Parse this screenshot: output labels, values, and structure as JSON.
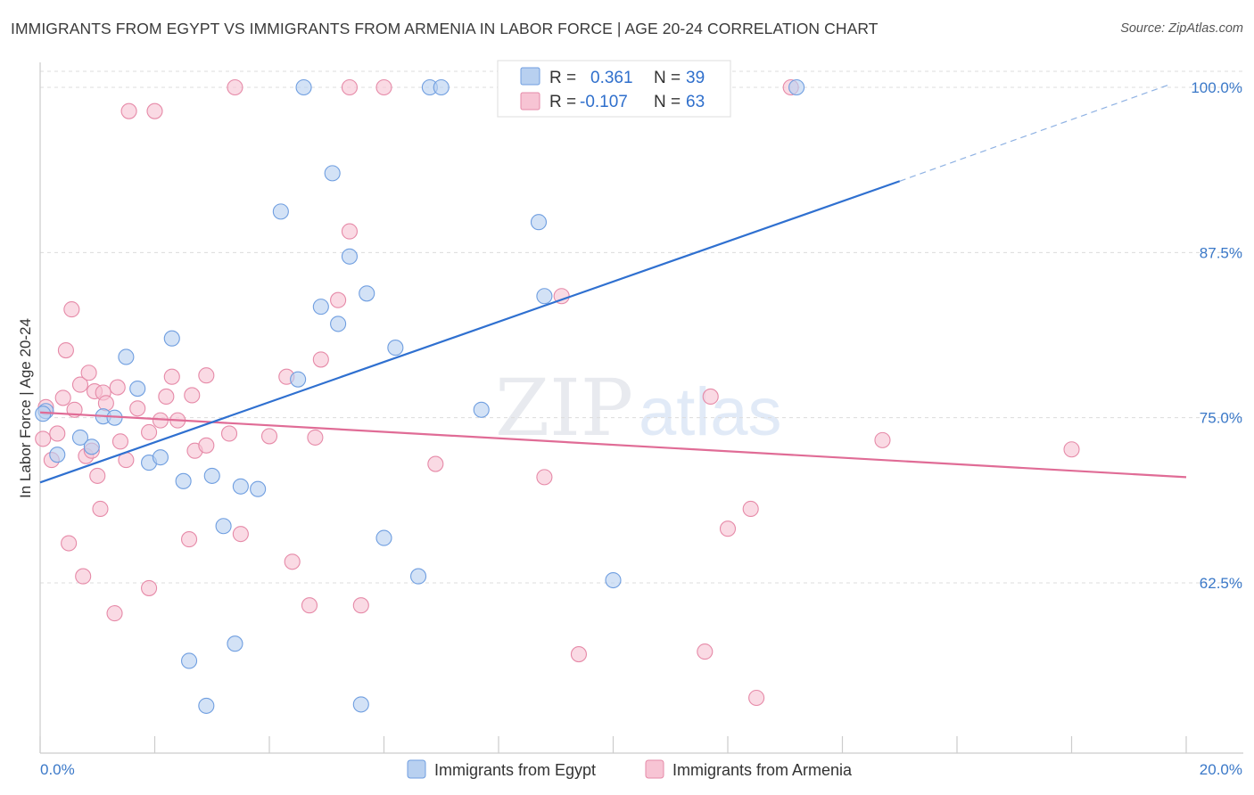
{
  "title": "IMMIGRANTS FROM EGYPT VS IMMIGRANTS FROM ARMENIA IN LABOR FORCE | AGE 20-24 CORRELATION CHART",
  "source": "Source: ZipAtlas.com",
  "watermark": {
    "zip": "ZIP",
    "atlas": "atlas"
  },
  "colors": {
    "blue_fill": "#b8d0f0",
    "blue_stroke": "#6f9ee0",
    "blue_line": "#2f70d0",
    "pink_fill": "#f7c4d4",
    "pink_stroke": "#e68aa8",
    "pink_line": "#e06c96",
    "tick_text": "#3a78c8",
    "grid": "#dcdcdc"
  },
  "legend": {
    "r_label": "R =",
    "n_label": "N =",
    "rows": [
      {
        "series": "egypt",
        "r": "0.361",
        "n": "39"
      },
      {
        "series": "armenia",
        "r": "-0.107",
        "n": "63"
      }
    ]
  },
  "chart_data": {
    "type": "scatter",
    "title": "IMMIGRANTS FROM EGYPT VS IMMIGRANTS FROM ARMENIA IN LABOR FORCE | AGE 20-24 CORRELATION CHART",
    "xlabel": "",
    "ylabel": "In Labor Force | Age 20-24",
    "xlim": [
      0,
      20
    ],
    "ylim": [
      50,
      101.2
    ],
    "x_tick_labels": [
      "0.0%",
      "20.0%"
    ],
    "y_ticks": [
      62.5,
      75.0,
      87.5,
      100.0
    ],
    "y_tick_labels": [
      "62.5%",
      "75.0%",
      "87.5%",
      "100.0%"
    ],
    "series": [
      {
        "name": "Immigrants from Egypt",
        "color": "blue",
        "trend": {
          "x0": 0,
          "y0": 70.1,
          "x1": 15.0,
          "y1": 92.9,
          "dash_to_x": 19.7,
          "dash_to_y": 100.2
        },
        "points": [
          [
            0.1,
            75.5
          ],
          [
            0.3,
            72.2
          ],
          [
            0.7,
            73.5
          ],
          [
            0.9,
            72.8
          ],
          [
            1.1,
            75.1
          ],
          [
            1.3,
            75.0
          ],
          [
            1.5,
            79.6
          ],
          [
            1.7,
            77.2
          ],
          [
            1.9,
            71.6
          ],
          [
            2.1,
            72.0
          ],
          [
            2.3,
            81.0
          ],
          [
            2.5,
            70.2
          ],
          [
            2.6,
            56.6
          ],
          [
            2.9,
            53.2
          ],
          [
            3.0,
            70.6
          ],
          [
            3.2,
            66.8
          ],
          [
            3.4,
            57.9
          ],
          [
            3.5,
            69.8
          ],
          [
            3.8,
            69.6
          ],
          [
            4.2,
            90.6
          ],
          [
            4.5,
            77.9
          ],
          [
            4.6,
            100.0
          ],
          [
            4.9,
            83.4
          ],
          [
            5.1,
            93.5
          ],
          [
            5.2,
            82.1
          ],
          [
            5.4,
            87.2
          ],
          [
            5.6,
            53.3
          ],
          [
            5.7,
            84.4
          ],
          [
            6.0,
            65.9
          ],
          [
            6.2,
            80.3
          ],
          [
            6.6,
            63.0
          ],
          [
            6.8,
            100.0
          ],
          [
            7.0,
            100.0
          ],
          [
            7.7,
            75.6
          ],
          [
            8.7,
            89.8
          ],
          [
            8.8,
            84.2
          ],
          [
            10.0,
            62.7
          ],
          [
            13.2,
            100.0
          ],
          [
            0.05,
            75.3
          ]
        ]
      },
      {
        "name": "Immigrants from Armenia",
        "color": "pink",
        "trend": {
          "x0": 0,
          "y0": 75.4,
          "x1": 20.0,
          "y1": 70.5
        },
        "points": [
          [
            0.05,
            73.4
          ],
          [
            0.1,
            75.8
          ],
          [
            0.2,
            71.8
          ],
          [
            0.3,
            73.8
          ],
          [
            0.4,
            76.5
          ],
          [
            0.45,
            80.1
          ],
          [
            0.5,
            65.5
          ],
          [
            0.55,
            83.2
          ],
          [
            0.6,
            75.6
          ],
          [
            0.7,
            77.5
          ],
          [
            0.75,
            63.0
          ],
          [
            0.8,
            72.1
          ],
          [
            0.85,
            78.4
          ],
          [
            0.9,
            72.5
          ],
          [
            0.95,
            77.0
          ],
          [
            1.0,
            70.6
          ],
          [
            1.05,
            68.1
          ],
          [
            1.1,
            76.9
          ],
          [
            1.15,
            76.1
          ],
          [
            1.3,
            60.2
          ],
          [
            1.35,
            77.3
          ],
          [
            1.4,
            73.2
          ],
          [
            1.5,
            71.8
          ],
          [
            1.55,
            98.2
          ],
          [
            1.7,
            75.7
          ],
          [
            1.9,
            73.9
          ],
          [
            1.9,
            62.1
          ],
          [
            2.0,
            98.2
          ],
          [
            2.1,
            74.8
          ],
          [
            2.2,
            76.6
          ],
          [
            2.3,
            78.1
          ],
          [
            2.4,
            74.8
          ],
          [
            2.6,
            65.8
          ],
          [
            2.65,
            76.7
          ],
          [
            2.7,
            72.5
          ],
          [
            2.9,
            78.2
          ],
          [
            2.9,
            72.9
          ],
          [
            3.3,
            73.8
          ],
          [
            3.4,
            100.0
          ],
          [
            3.5,
            66.2
          ],
          [
            4.0,
            73.6
          ],
          [
            4.3,
            78.1
          ],
          [
            4.4,
            64.1
          ],
          [
            4.7,
            60.8
          ],
          [
            4.8,
            73.5
          ],
          [
            4.9,
            79.4
          ],
          [
            5.2,
            83.9
          ],
          [
            5.4,
            89.1
          ],
          [
            5.6,
            60.8
          ],
          [
            5.4,
            100.0
          ],
          [
            6.0,
            100.0
          ],
          [
            6.9,
            71.5
          ],
          [
            8.8,
            70.5
          ],
          [
            9.1,
            84.2
          ],
          [
            9.4,
            57.1
          ],
          [
            11.6,
            57.3
          ],
          [
            11.7,
            76.6
          ],
          [
            12.0,
            66.6
          ],
          [
            12.4,
            68.1
          ],
          [
            12.5,
            53.8
          ],
          [
            13.1,
            100.0
          ],
          [
            14.7,
            73.3
          ],
          [
            18.0,
            72.6
          ]
        ]
      }
    ]
  }
}
